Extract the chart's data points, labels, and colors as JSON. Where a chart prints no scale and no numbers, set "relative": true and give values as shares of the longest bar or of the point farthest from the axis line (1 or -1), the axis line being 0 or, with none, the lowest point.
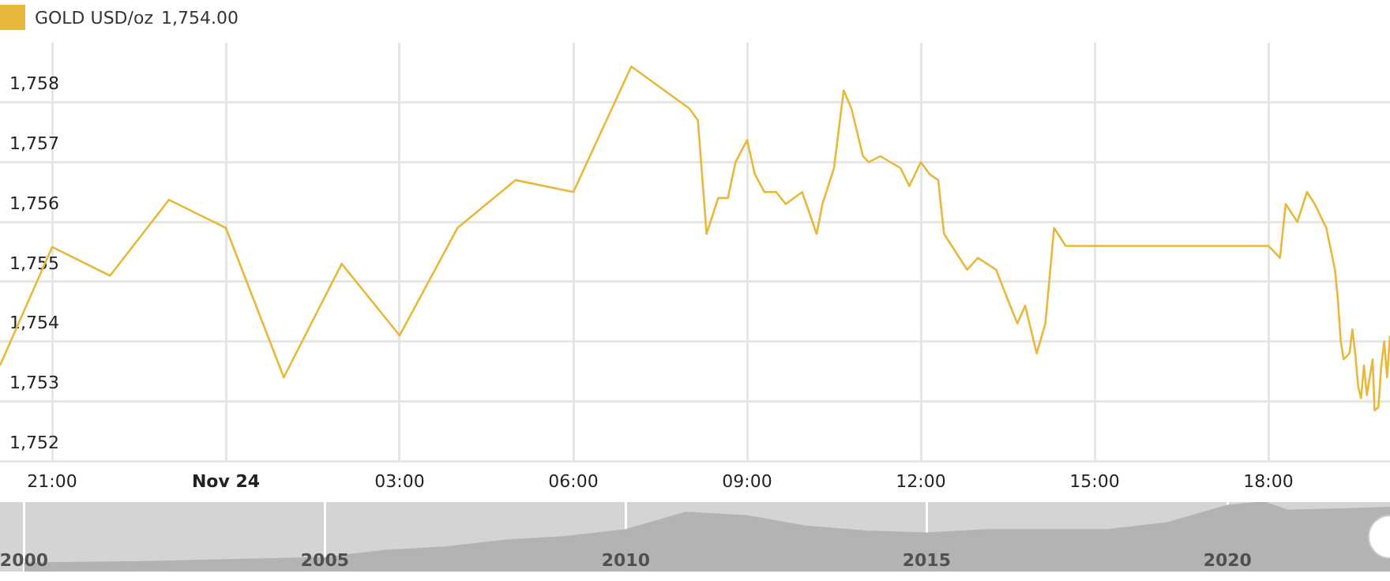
{
  "chart_data": [
    {
      "type": "line",
      "legend": "top left",
      "annotations": [
        "1,754.00"
      ],
      "grid": true,
      "marker": "none",
      "line_style": "solid",
      "x": [
        "--11-23T20:06",
        "--11-23T21:00",
        "--11-23T22:00",
        "--11-23T23:01",
        "--11-24T00:00",
        "--11-24T01:00",
        "--11-24T02:00",
        "--11-24T03:00",
        "--11-24T04:00",
        "--11-24T05:00",
        "--11-24T06:00",
        "--11-24T07:00",
        "--11-24T08:00",
        "--11-24T08:09",
        "--11-24T08:18",
        "--11-24T08:30",
        "--11-24T08:40",
        "--11-24T08:48",
        "--11-24T09:00",
        "--11-24T09:08",
        "--11-24T09:18",
        "--11-24T09:30",
        "--11-24T09:40",
        "--11-24T09:57",
        "--11-24T10:12",
        "--11-24T10:18",
        "--11-24T10:30",
        "--11-24T10:40",
        "--11-24T10:48",
        "--11-24T11:00",
        "--11-24T11:06",
        "--11-24T11:18",
        "--11-24T11:39",
        "--11-24T11:48",
        "--11-24T12:00",
        "--11-24T12:09",
        "--11-24T12:18",
        "--11-24T12:24",
        "--11-24T12:48",
        "--11-24T12:59",
        "--11-24T13:18",
        "--11-24T13:30",
        "--11-24T13:40",
        "--11-24T13:48",
        "--11-24T14:00",
        "--11-24T14:09",
        "--11-24T14:18",
        "--11-24T14:30",
        "--11-24T18:00",
        "--11-24T18:12",
        "--11-24T18:18",
        "--11-24T18:30",
        "--11-24T18:40",
        "--11-24T18:48",
        "--11-24T19:00",
        "--11-24T19:09",
        "--11-24T19:12",
        "--11-24T19:15",
        "--11-24T19:18",
        "--11-24T19:24",
        "--11-24T19:27",
        "--11-24T19:30",
        "--11-24T19:33",
        "--11-24T19:36",
        "--11-24T19:39",
        "--11-24T19:42",
        "--11-24T19:48",
        "--11-24T19:50",
        "--11-24T19:54",
        "--11-24T19:57",
        "--11-24T20:00",
        "--11-24T20:03",
        "--11-24T20:06"
      ],
      "series": [
        {
          "name": "GOLD USD/oz",
          "color": "#e8b83a",
          "values": [
            1753.6,
            1755.58,
            1755.1,
            1756.37,
            1755.9,
            1753.4,
            1755.3,
            1754.1,
            1755.9,
            1756.7,
            1756.5,
            1758.6,
            1757.9,
            1757.7,
            1755.8,
            1756.4,
            1756.4,
            1757.0,
            1757.37,
            1756.8,
            1756.5,
            1756.5,
            1756.3,
            1756.5,
            1755.8,
            1756.3,
            1756.9,
            1758.2,
            1757.9,
            1757.1,
            1757.0,
            1757.1,
            1756.9,
            1756.6,
            1757.0,
            1756.8,
            1756.7,
            1755.8,
            1755.2,
            1755.4,
            1755.2,
            1754.7,
            1754.3,
            1754.6,
            1753.8,
            1754.3,
            1755.9,
            1755.6,
            1755.6,
            1755.4,
            1756.3,
            1756.0,
            1756.5,
            1756.3,
            1755.9,
            1755.2,
            1754.7,
            1754.0,
            1753.7,
            1753.8,
            1754.2,
            1753.8,
            1753.25,
            1753.05,
            1753.6,
            1753.1,
            1753.7,
            1752.85,
            1752.9,
            1753.6,
            1754.0,
            1753.4,
            1754.1
          ]
        }
      ],
      "xlim": [
        "--11-23T20:06",
        "--11-24T20:06"
      ],
      "xticks": [
        {
          "value": "--11-23T21:00",
          "label": "21:00"
        },
        {
          "value": "--11-24T00:00",
          "label": "Nov 24"
        },
        {
          "value": "--11-24T03:00",
          "label": "03:00"
        },
        {
          "value": "--11-24T06:00",
          "label": "06:00"
        },
        {
          "value": "--11-24T09:00",
          "label": "09:00"
        },
        {
          "value": "--11-24T12:00",
          "label": "12:00"
        },
        {
          "value": "--11-24T15:00",
          "label": "15:00"
        },
        {
          "value": "--11-24T18:00",
          "label": "18:00"
        }
      ],
      "ylim": [
        1752,
        1759
      ],
      "yticks": [
        {
          "value": 1752,
          "label": "1,752"
        },
        {
          "value": 1753,
          "label": "1,753"
        },
        {
          "value": 1754,
          "label": "1,754"
        },
        {
          "value": 1755,
          "label": "1,755"
        },
        {
          "value": 1756,
          "label": "1,756"
        },
        {
          "value": 1757,
          "label": "1,757"
        },
        {
          "value": 1758,
          "label": "1,758"
        }
      ]
    },
    {
      "type": "area",
      "relative": true,
      "tick_labels": "x",
      "grid": "x",
      "x": [
        2000,
        2002,
        2004,
        2005,
        2006,
        2007,
        2008,
        2009,
        2010,
        2011,
        2012,
        2013,
        2014,
        2015,
        2016,
        2017,
        2018,
        2019,
        2020,
        2020.6,
        2021,
        2022,
        2022.7
      ],
      "series": [
        {
          "color": "#b3b3b3",
          "values": [
            0.12,
            0.14,
            0.18,
            0.2,
            0.3,
            0.35,
            0.45,
            0.5,
            0.6,
            0.85,
            0.8,
            0.65,
            0.58,
            0.55,
            0.6,
            0.6,
            0.6,
            0.7,
            0.95,
            1,
            0.88,
            0.9,
            0.92
          ]
        }
      ],
      "xlim": [
        1999.6,
        2022.7
      ],
      "xticks": [
        2000,
        2005,
        2010,
        2015,
        2020
      ]
    }
  ]
}
